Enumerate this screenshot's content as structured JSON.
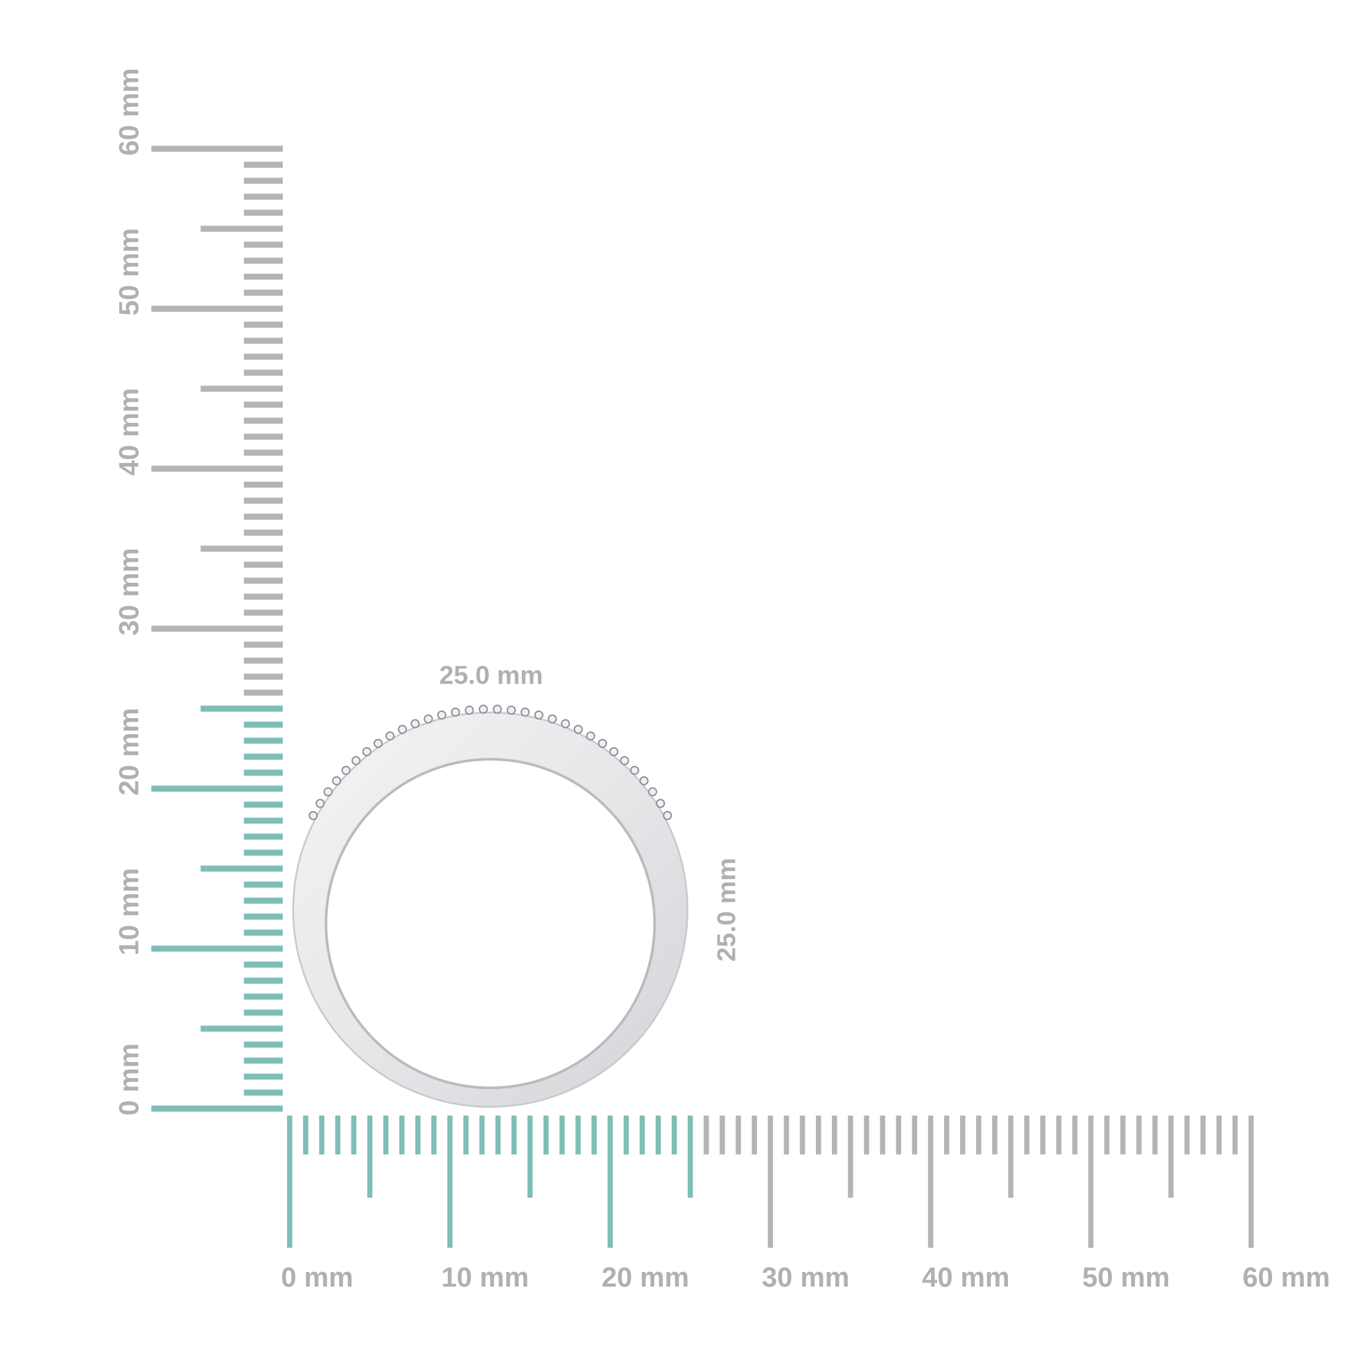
{
  "vertical_ruler": {
    "labels": [
      "0 mm",
      "10 mm",
      "20 mm",
      "30 mm",
      "40 mm",
      "50 mm",
      "60 mm"
    ]
  },
  "horizontal_ruler": {
    "labels": [
      "0 mm",
      "10 mm",
      "20 mm",
      "30 mm",
      "40 mm",
      "50 mm",
      "60 mm"
    ]
  },
  "ring": {
    "width_label": "25.0 mm",
    "height_label": "25.0 mm"
  }
}
